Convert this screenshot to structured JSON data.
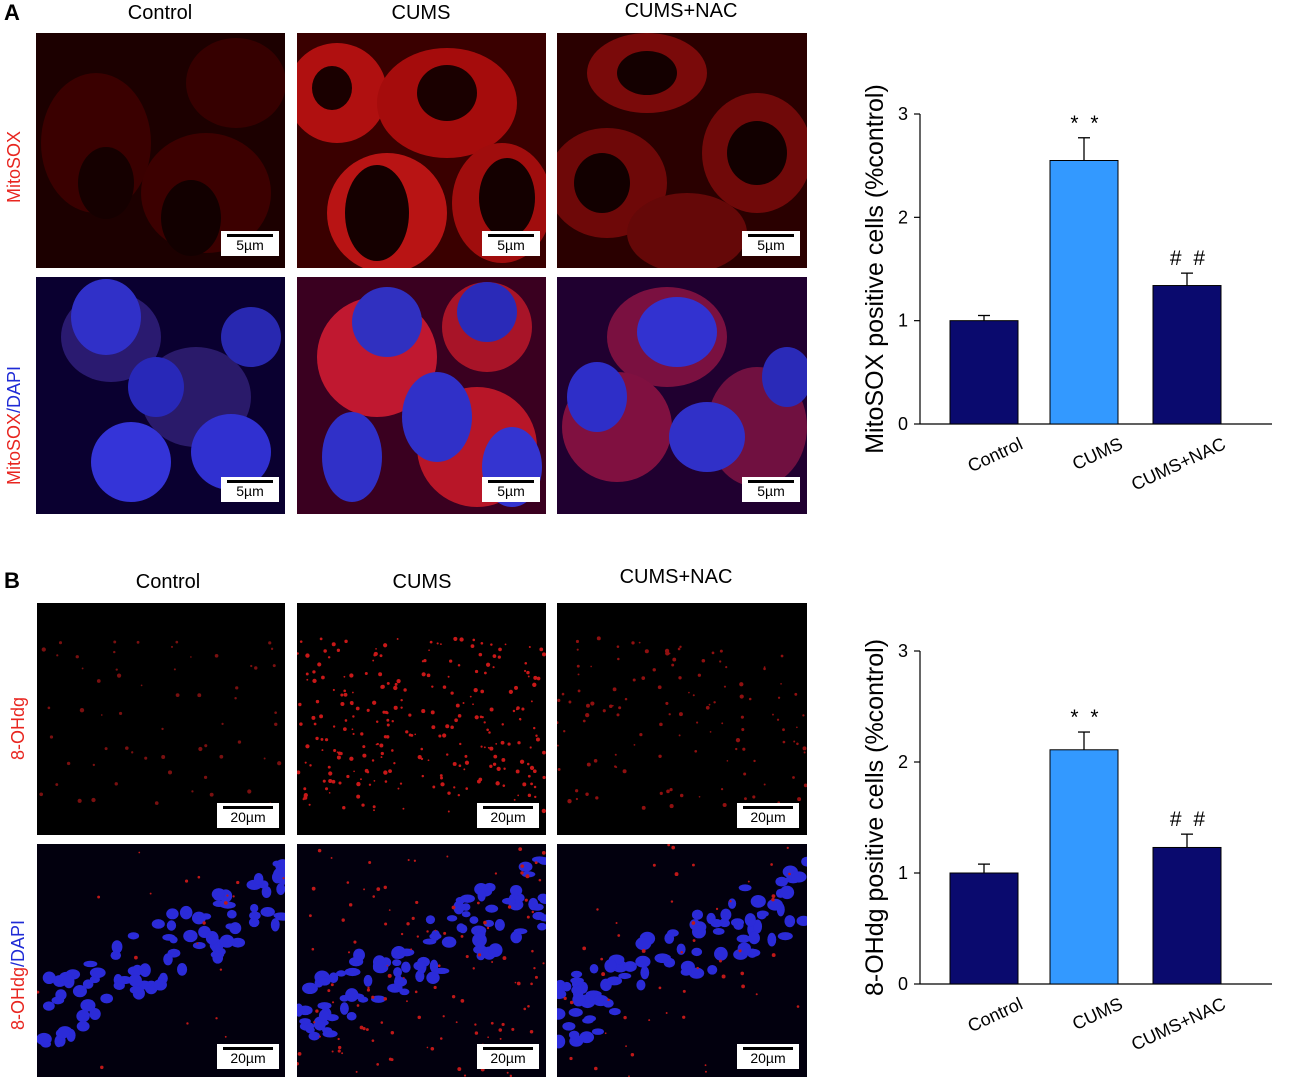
{
  "figure": {
    "panels": [
      {
        "letter": "A",
        "columns": [
          "Control",
          "CUMS",
          "CUMS+NAC"
        ],
        "rows": [
          {
            "label_red": "MitoSOX",
            "label_blue": ""
          },
          {
            "label_red": "MitoSOX",
            "label_blue": "/DAPI"
          }
        ],
        "scale_bar": "5µm"
      },
      {
        "letter": "B",
        "columns": [
          "Control",
          "CUMS",
          "CUMS+NAC"
        ],
        "rows": [
          {
            "label_red": "8-OHdg",
            "label_blue": ""
          },
          {
            "label_red": "8-OHdg",
            "label_blue": "/DAPI"
          }
        ],
        "scale_bar": "20µm"
      }
    ]
  },
  "colors": {
    "control_bar": "#0a0a6e",
    "cums_bar": "#3399ff",
    "nac_bar": "#0a0a6e",
    "label_red": "#e8251f",
    "label_blue": "#1f2bd6"
  },
  "chart_data": [
    {
      "type": "bar",
      "categories": [
        "Control",
        "CUMS",
        "CUMS+NAC"
      ],
      "values": [
        1.0,
        2.55,
        1.34
      ],
      "errors": [
        0.05,
        0.22,
        0.12
      ],
      "annotations": [
        "",
        "**",
        "##"
      ],
      "ylabel": "MitoSOX positive cells (%control)",
      "ylim": [
        0,
        3
      ],
      "yticks": [
        "0",
        "1",
        "2",
        "3"
      ],
      "grid": false
    },
    {
      "type": "bar",
      "categories": [
        "Control",
        "CUMS",
        "CUMS+NAC"
      ],
      "values": [
        1.0,
        2.11,
        1.23
      ],
      "errors": [
        0.08,
        0.16,
        0.12
      ],
      "annotations": [
        "",
        "**",
        "##"
      ],
      "ylabel": "8-OHdg positive cells (%control)",
      "ylim": [
        0,
        3
      ],
      "yticks": [
        "0",
        "1",
        "2",
        "3"
      ],
      "grid": false
    }
  ]
}
